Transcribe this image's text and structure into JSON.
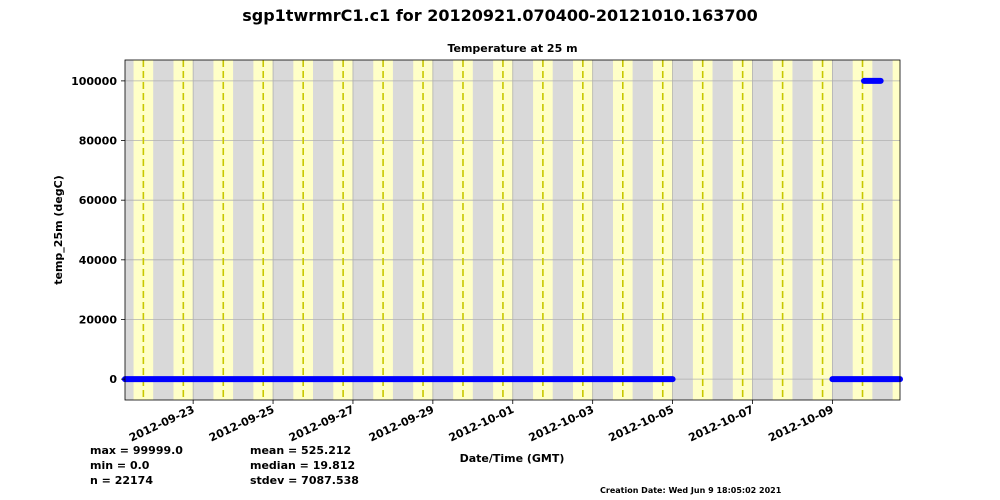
{
  "header": {
    "title": "sgp1twrmrC1.c1 for 20120921.070400-20121010.163700",
    "plot_title": "Temperature at 25 m"
  },
  "stats": {
    "max": "max = 99999.0",
    "min": "min = 0.0",
    "n": "n = 22174",
    "mean": "mean = 525.212",
    "median": "median = 19.812",
    "stdev": "stdev = 7087.538"
  },
  "footer": {
    "creation": "Creation Date: Wed Jun  9 18:05:02 2021"
  },
  "colors": {
    "day": "#ffffc8",
    "night": "#d9d9d9",
    "noon_line": "#c8c800",
    "series": "#0000ff",
    "grid": "#b0b0b0"
  },
  "chart_data": {
    "type": "scatter",
    "title": "Temperature at 25 m",
    "xlabel": "Date/Time (GMT)",
    "ylabel": "temp_25m (degC)",
    "xlim": [
      "2012-09-21T07:04:00Z",
      "2012-10-10T16:37:00Z"
    ],
    "ylim": [
      -7000,
      107000
    ],
    "yticks": [
      0,
      20000,
      40000,
      60000,
      80000,
      100000
    ],
    "ytick_labels": [
      "0",
      "20000",
      "40000",
      "60000",
      "80000",
      "100000"
    ],
    "xticks": [
      "2012-09-23",
      "2012-09-25",
      "2012-09-27",
      "2012-09-29",
      "2012-10-01",
      "2012-10-03",
      "2012-10-05",
      "2012-10-07",
      "2012-10-09"
    ],
    "grid": true,
    "background": "day/night shading with dashed local-noon lines",
    "series": [
      {
        "segments": [
          {
            "x_start": "2012-09-21T07:04:00Z",
            "x_end": "2012-10-05T00:00:00Z",
            "y": 0
          },
          {
            "x_start": "2012-10-09T19:00:00Z",
            "x_end": "2012-10-10T05:00:00Z",
            "y": 99999.0
          },
          {
            "x_start": "2012-10-09T00:00:00Z",
            "x_end": "2012-10-10T16:37:00Z",
            "y": 0
          }
        ]
      }
    ]
  }
}
